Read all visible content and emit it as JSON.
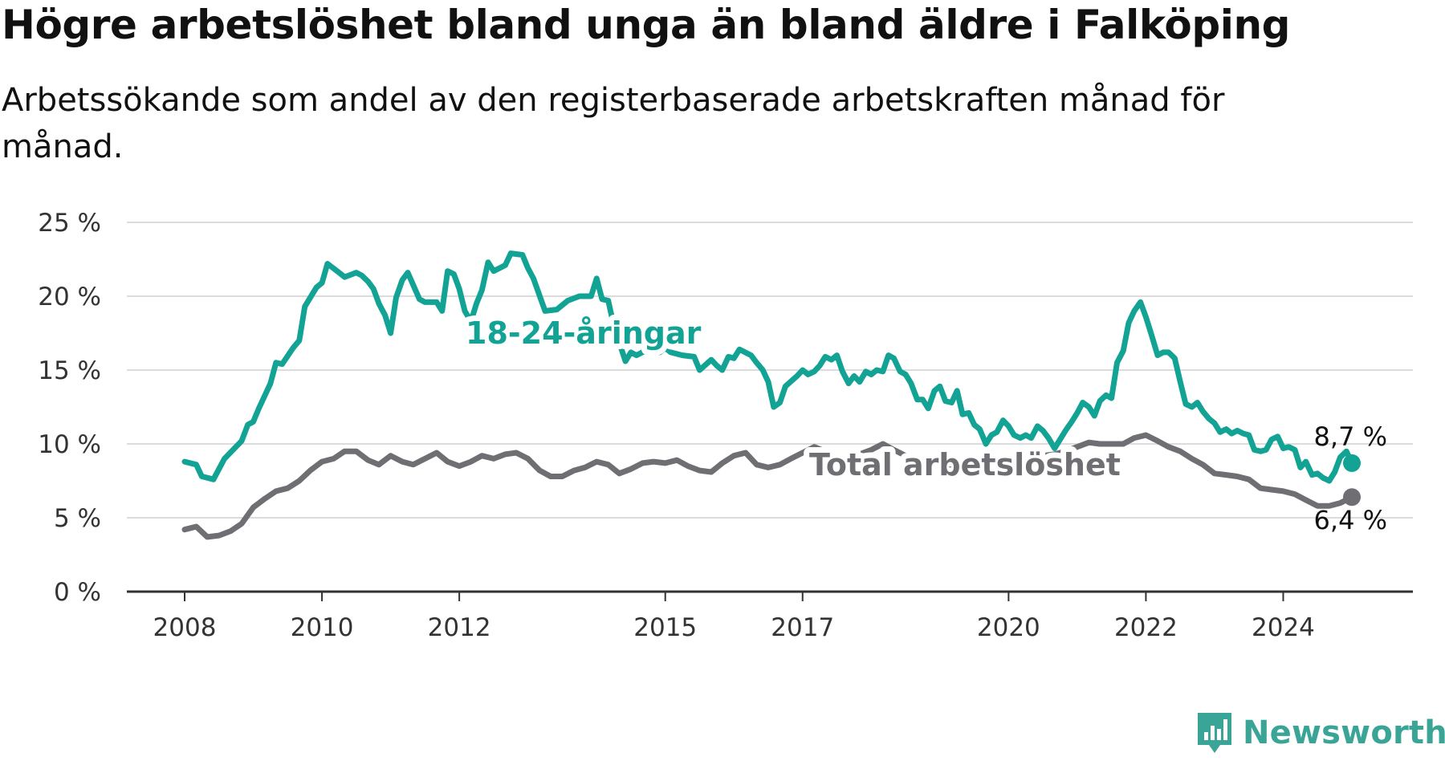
{
  "title": "Högre arbetslöshet bland unga än bland äldre i Falköping",
  "subtitle": "Arbetssökande som andel av den registerbaserade arbetskraften månad för månad.",
  "brand": {
    "name": "Newsworthy",
    "color": "#3aa596"
  },
  "chart_data": {
    "type": "line",
    "x_range": [
      2008.0,
      2025.0
    ],
    "ylim": [
      0,
      25
    ],
    "grid": true,
    "y_ticks": [
      {
        "value": 0,
        "label": "0 %"
      },
      {
        "value": 5,
        "label": "5 %"
      },
      {
        "value": 10,
        "label": "10 %"
      },
      {
        "value": 15,
        "label": "15 %"
      },
      {
        "value": 20,
        "label": "20 %"
      },
      {
        "value": 25,
        "label": "25 %"
      }
    ],
    "x_ticks": [
      {
        "value": 2008,
        "label": "2008"
      },
      {
        "value": 2010,
        "label": "2010"
      },
      {
        "value": 2012,
        "label": "2012"
      },
      {
        "value": 2015,
        "label": "2015"
      },
      {
        "value": 2017,
        "label": "2017"
      },
      {
        "value": 2020,
        "label": "2020"
      },
      {
        "value": 2022,
        "label": "2022"
      },
      {
        "value": 2024,
        "label": "2024"
      }
    ],
    "series": [
      {
        "name": "18-24-åringar",
        "color": "#12a394",
        "end_label": "8,7 %",
        "points": [
          [
            2008.0,
            8.8
          ],
          [
            2008.17,
            8.6
          ],
          [
            2008.25,
            7.8
          ],
          [
            2008.42,
            7.6
          ],
          [
            2008.58,
            9.0
          ],
          [
            2008.83,
            10.2
          ],
          [
            2008.92,
            11.3
          ],
          [
            2009.0,
            11.5
          ],
          [
            2009.08,
            12.4
          ],
          [
            2009.25,
            14.1
          ],
          [
            2009.33,
            15.5
          ],
          [
            2009.42,
            15.4
          ],
          [
            2009.58,
            16.5
          ],
          [
            2009.67,
            17.0
          ],
          [
            2009.75,
            19.3
          ],
          [
            2009.92,
            20.6
          ],
          [
            2010.0,
            20.9
          ],
          [
            2010.08,
            22.2
          ],
          [
            2010.25,
            21.6
          ],
          [
            2010.33,
            21.3
          ],
          [
            2010.5,
            21.6
          ],
          [
            2010.58,
            21.4
          ],
          [
            2010.67,
            21.0
          ],
          [
            2010.75,
            20.5
          ],
          [
            2010.83,
            19.5
          ],
          [
            2010.92,
            18.7
          ],
          [
            2011.0,
            17.5
          ],
          [
            2011.08,
            19.9
          ],
          [
            2011.17,
            21.1
          ],
          [
            2011.25,
            21.6
          ],
          [
            2011.42,
            19.8
          ],
          [
            2011.5,
            19.6
          ],
          [
            2011.67,
            19.6
          ],
          [
            2011.75,
            19.0
          ],
          [
            2011.83,
            21.7
          ],
          [
            2011.92,
            21.5
          ],
          [
            2012.0,
            20.5
          ],
          [
            2012.08,
            19.0
          ],
          [
            2012.17,
            18.3
          ],
          [
            2012.25,
            19.5
          ],
          [
            2012.33,
            20.4
          ],
          [
            2012.42,
            22.3
          ],
          [
            2012.5,
            21.7
          ],
          [
            2012.67,
            22.1
          ],
          [
            2012.75,
            22.9
          ],
          [
            2012.92,
            22.8
          ],
          [
            2013.0,
            21.9
          ],
          [
            2013.08,
            21.2
          ],
          [
            2013.25,
            19.0
          ],
          [
            2013.42,
            19.1
          ],
          [
            2013.58,
            19.7
          ],
          [
            2013.75,
            20.0
          ],
          [
            2013.92,
            20.0
          ],
          [
            2014.0,
            21.2
          ],
          [
            2014.08,
            19.8
          ],
          [
            2014.17,
            19.7
          ],
          [
            2014.25,
            18.0
          ],
          [
            2014.42,
            15.6
          ],
          [
            2014.5,
            16.2
          ],
          [
            2014.58,
            16.0
          ],
          [
            2014.75,
            16.4
          ],
          [
            2014.92,
            16.2
          ],
          [
            2015.0,
            16.5
          ],
          [
            2015.08,
            16.2
          ],
          [
            2015.25,
            16.0
          ],
          [
            2015.42,
            15.9
          ],
          [
            2015.5,
            15.0
          ],
          [
            2015.67,
            15.7
          ],
          [
            2015.75,
            15.3
          ],
          [
            2015.83,
            15.0
          ],
          [
            2015.92,
            15.9
          ],
          [
            2016.0,
            15.8
          ],
          [
            2016.08,
            16.4
          ],
          [
            2016.25,
            16.0
          ],
          [
            2016.33,
            15.5
          ],
          [
            2016.42,
            15.0
          ],
          [
            2016.5,
            14.2
          ],
          [
            2016.58,
            12.5
          ],
          [
            2016.67,
            12.8
          ],
          [
            2016.75,
            13.9
          ],
          [
            2016.92,
            14.6
          ],
          [
            2017.0,
            15.0
          ],
          [
            2017.08,
            14.7
          ],
          [
            2017.17,
            14.9
          ],
          [
            2017.25,
            15.3
          ],
          [
            2017.33,
            15.9
          ],
          [
            2017.42,
            15.7
          ],
          [
            2017.5,
            16.0
          ],
          [
            2017.58,
            14.9
          ],
          [
            2017.67,
            14.1
          ],
          [
            2017.75,
            14.6
          ],
          [
            2017.83,
            14.2
          ],
          [
            2017.92,
            14.9
          ],
          [
            2018.0,
            14.7
          ],
          [
            2018.08,
            15.0
          ],
          [
            2018.17,
            14.9
          ],
          [
            2018.25,
            16.0
          ],
          [
            2018.33,
            15.8
          ],
          [
            2018.42,
            14.9
          ],
          [
            2018.5,
            14.7
          ],
          [
            2018.58,
            14.1
          ],
          [
            2018.67,
            13.0
          ],
          [
            2018.75,
            13.0
          ],
          [
            2018.83,
            12.4
          ],
          [
            2018.92,
            13.6
          ],
          [
            2019.0,
            13.9
          ],
          [
            2019.08,
            12.9
          ],
          [
            2019.17,
            12.8
          ],
          [
            2019.25,
            13.6
          ],
          [
            2019.33,
            12.0
          ],
          [
            2019.42,
            12.1
          ],
          [
            2019.5,
            11.3
          ],
          [
            2019.58,
            11.0
          ],
          [
            2019.67,
            10.0
          ],
          [
            2019.75,
            10.6
          ],
          [
            2019.83,
            10.8
          ],
          [
            2019.92,
            11.6
          ],
          [
            2020.0,
            11.2
          ],
          [
            2020.08,
            10.6
          ],
          [
            2020.17,
            10.4
          ],
          [
            2020.25,
            10.6
          ],
          [
            2020.33,
            10.4
          ],
          [
            2020.42,
            11.2
          ],
          [
            2020.5,
            10.9
          ],
          [
            2020.58,
            10.4
          ],
          [
            2020.67,
            9.7
          ],
          [
            2020.75,
            10.3
          ],
          [
            2020.83,
            10.9
          ],
          [
            2020.92,
            11.5
          ],
          [
            2021.0,
            12.1
          ],
          [
            2021.08,
            12.8
          ],
          [
            2021.17,
            12.5
          ],
          [
            2021.25,
            11.9
          ],
          [
            2021.33,
            12.9
          ],
          [
            2021.42,
            13.3
          ],
          [
            2021.5,
            13.1
          ],
          [
            2021.58,
            15.5
          ],
          [
            2021.67,
            16.3
          ],
          [
            2021.75,
            18.2
          ],
          [
            2021.83,
            19.0
          ],
          [
            2021.92,
            19.6
          ],
          [
            2022.0,
            18.6
          ],
          [
            2022.08,
            17.4
          ],
          [
            2022.17,
            16.0
          ],
          [
            2022.25,
            16.2
          ],
          [
            2022.33,
            16.2
          ],
          [
            2022.42,
            15.8
          ],
          [
            2022.5,
            14.2
          ],
          [
            2022.58,
            12.7
          ],
          [
            2022.67,
            12.5
          ],
          [
            2022.75,
            12.8
          ],
          [
            2022.83,
            12.2
          ],
          [
            2022.92,
            11.7
          ],
          [
            2023.0,
            11.4
          ],
          [
            2023.08,
            10.8
          ],
          [
            2023.17,
            11.0
          ],
          [
            2023.25,
            10.7
          ],
          [
            2023.33,
            10.9
          ],
          [
            2023.42,
            10.7
          ],
          [
            2023.5,
            10.6
          ],
          [
            2023.58,
            9.6
          ],
          [
            2023.67,
            9.5
          ],
          [
            2023.75,
            9.6
          ],
          [
            2023.83,
            10.3
          ],
          [
            2023.92,
            10.5
          ],
          [
            2024.0,
            9.7
          ],
          [
            2024.08,
            9.8
          ],
          [
            2024.17,
            9.6
          ],
          [
            2024.25,
            8.4
          ],
          [
            2024.33,
            8.8
          ],
          [
            2024.42,
            7.9
          ],
          [
            2024.5,
            8.0
          ],
          [
            2024.58,
            7.7
          ],
          [
            2024.67,
            7.5
          ],
          [
            2024.75,
            8.1
          ],
          [
            2024.83,
            9.1
          ],
          [
            2024.92,
            9.5
          ],
          [
            2025.0,
            8.7
          ]
        ]
      },
      {
        "name": "Total arbetslöshet",
        "color": "#6e6e73",
        "end_label": "6,4 %",
        "points": [
          [
            2008.0,
            4.2
          ],
          [
            2008.17,
            4.4
          ],
          [
            2008.33,
            3.7
          ],
          [
            2008.5,
            3.8
          ],
          [
            2008.67,
            4.1
          ],
          [
            2008.83,
            4.6
          ],
          [
            2009.0,
            5.7
          ],
          [
            2009.17,
            6.3
          ],
          [
            2009.33,
            6.8
          ],
          [
            2009.5,
            7.0
          ],
          [
            2009.67,
            7.5
          ],
          [
            2009.83,
            8.2
          ],
          [
            2010.0,
            8.8
          ],
          [
            2010.17,
            9.0
          ],
          [
            2010.33,
            9.5
          ],
          [
            2010.5,
            9.5
          ],
          [
            2010.67,
            8.9
          ],
          [
            2010.83,
            8.6
          ],
          [
            2011.0,
            9.2
          ],
          [
            2011.17,
            8.8
          ],
          [
            2011.33,
            8.6
          ],
          [
            2011.5,
            9.0
          ],
          [
            2011.67,
            9.4
          ],
          [
            2011.83,
            8.8
          ],
          [
            2012.0,
            8.5
          ],
          [
            2012.17,
            8.8
          ],
          [
            2012.33,
            9.2
          ],
          [
            2012.5,
            9.0
          ],
          [
            2012.67,
            9.3
          ],
          [
            2012.83,
            9.4
          ],
          [
            2013.0,
            9.0
          ],
          [
            2013.17,
            8.2
          ],
          [
            2013.33,
            7.8
          ],
          [
            2013.5,
            7.8
          ],
          [
            2013.67,
            8.2
          ],
          [
            2013.83,
            8.4
          ],
          [
            2014.0,
            8.8
          ],
          [
            2014.17,
            8.6
          ],
          [
            2014.33,
            8.0
          ],
          [
            2014.5,
            8.3
          ],
          [
            2014.67,
            8.7
          ],
          [
            2014.83,
            8.8
          ],
          [
            2015.0,
            8.7
          ],
          [
            2015.17,
            8.9
          ],
          [
            2015.33,
            8.5
          ],
          [
            2015.5,
            8.2
          ],
          [
            2015.67,
            8.1
          ],
          [
            2015.83,
            8.7
          ],
          [
            2016.0,
            9.2
          ],
          [
            2016.17,
            9.4
          ],
          [
            2016.33,
            8.6
          ],
          [
            2016.5,
            8.4
          ],
          [
            2016.67,
            8.6
          ],
          [
            2016.83,
            9.0
          ],
          [
            2017.0,
            9.4
          ],
          [
            2017.17,
            9.8
          ],
          [
            2017.33,
            9.5
          ],
          [
            2017.5,
            9.1
          ],
          [
            2017.67,
            9.0
          ],
          [
            2017.83,
            9.3
          ],
          [
            2018.0,
            9.6
          ],
          [
            2018.17,
            10.0
          ],
          [
            2018.33,
            9.6
          ],
          [
            2018.5,
            9.2
          ],
          [
            2018.67,
            9.0
          ],
          [
            2018.83,
            8.8
          ],
          [
            2019.0,
            8.6
          ],
          [
            2019.17,
            8.4
          ],
          [
            2019.33,
            8.3
          ],
          [
            2019.5,
            8.1
          ],
          [
            2019.67,
            8.0
          ],
          [
            2019.83,
            8.2
          ],
          [
            2020.0,
            8.4
          ],
          [
            2020.17,
            8.8
          ],
          [
            2020.33,
            9.0
          ],
          [
            2020.5,
            9.2
          ],
          [
            2020.67,
            9.3
          ],
          [
            2020.83,
            9.5
          ],
          [
            2021.0,
            9.8
          ],
          [
            2021.17,
            10.1
          ],
          [
            2021.33,
            10.0
          ],
          [
            2021.5,
            10.0
          ],
          [
            2021.67,
            10.0
          ],
          [
            2021.83,
            10.4
          ],
          [
            2022.0,
            10.6
          ],
          [
            2022.17,
            10.2
          ],
          [
            2022.33,
            9.8
          ],
          [
            2022.5,
            9.5
          ],
          [
            2022.67,
            9.0
          ],
          [
            2022.83,
            8.6
          ],
          [
            2023.0,
            8.0
          ],
          [
            2023.17,
            7.9
          ],
          [
            2023.33,
            7.8
          ],
          [
            2023.5,
            7.6
          ],
          [
            2023.67,
            7.0
          ],
          [
            2023.83,
            6.9
          ],
          [
            2024.0,
            6.8
          ],
          [
            2024.17,
            6.6
          ],
          [
            2024.33,
            6.2
          ],
          [
            2024.5,
            5.8
          ],
          [
            2024.67,
            5.8
          ],
          [
            2024.83,
            6.0
          ],
          [
            2025.0,
            6.4
          ]
        ]
      }
    ]
  }
}
